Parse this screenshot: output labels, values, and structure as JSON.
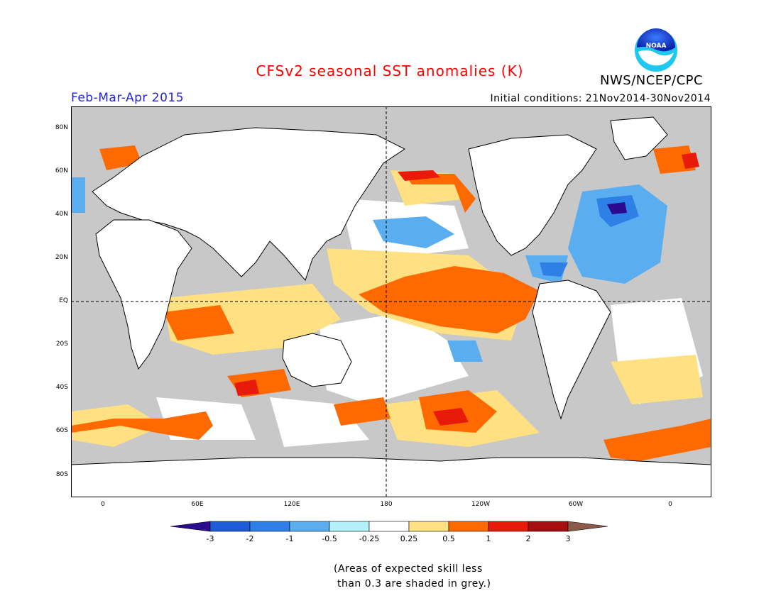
{
  "title": "CFSv2 seasonal SST anomalies (K)",
  "agency": "NWS/NCEP/CPC",
  "logo_text": "NOAA",
  "period": "Feb-Mar-Apr 2015",
  "initial_conditions": "Initial conditions: 21Nov2014-30Nov2014",
  "lat_labels": [
    "80N",
    "60N",
    "40N",
    "20N",
    "EQ",
    "20S",
    "40S",
    "60S",
    "80S"
  ],
  "lon_labels": [
    "0",
    "60E",
    "120E",
    "180",
    "120W",
    "60W",
    "0"
  ],
  "colorbar": {
    "labels": [
      "-3",
      "-2",
      "-1",
      "-0.5",
      "-0.25",
      "0.25",
      "0.5",
      "1",
      "2",
      "3"
    ],
    "colors": [
      "#2c0a8f",
      "#1e5bd6",
      "#2e7fe6",
      "#5aaef0",
      "#b4f0fa",
      "#ffffff",
      "#ffe082",
      "#ff6a00",
      "#e81a0a",
      "#a50f0f",
      "#8b5a4b"
    ]
  },
  "note": "(Areas of expected skill less\n than 0.3 are shaded in grey.)",
  "colors": {
    "title": "#ff0000",
    "period": "#2222dd",
    "land": "#ffffff",
    "low_skill_grey": "#c8c8c8"
  }
}
